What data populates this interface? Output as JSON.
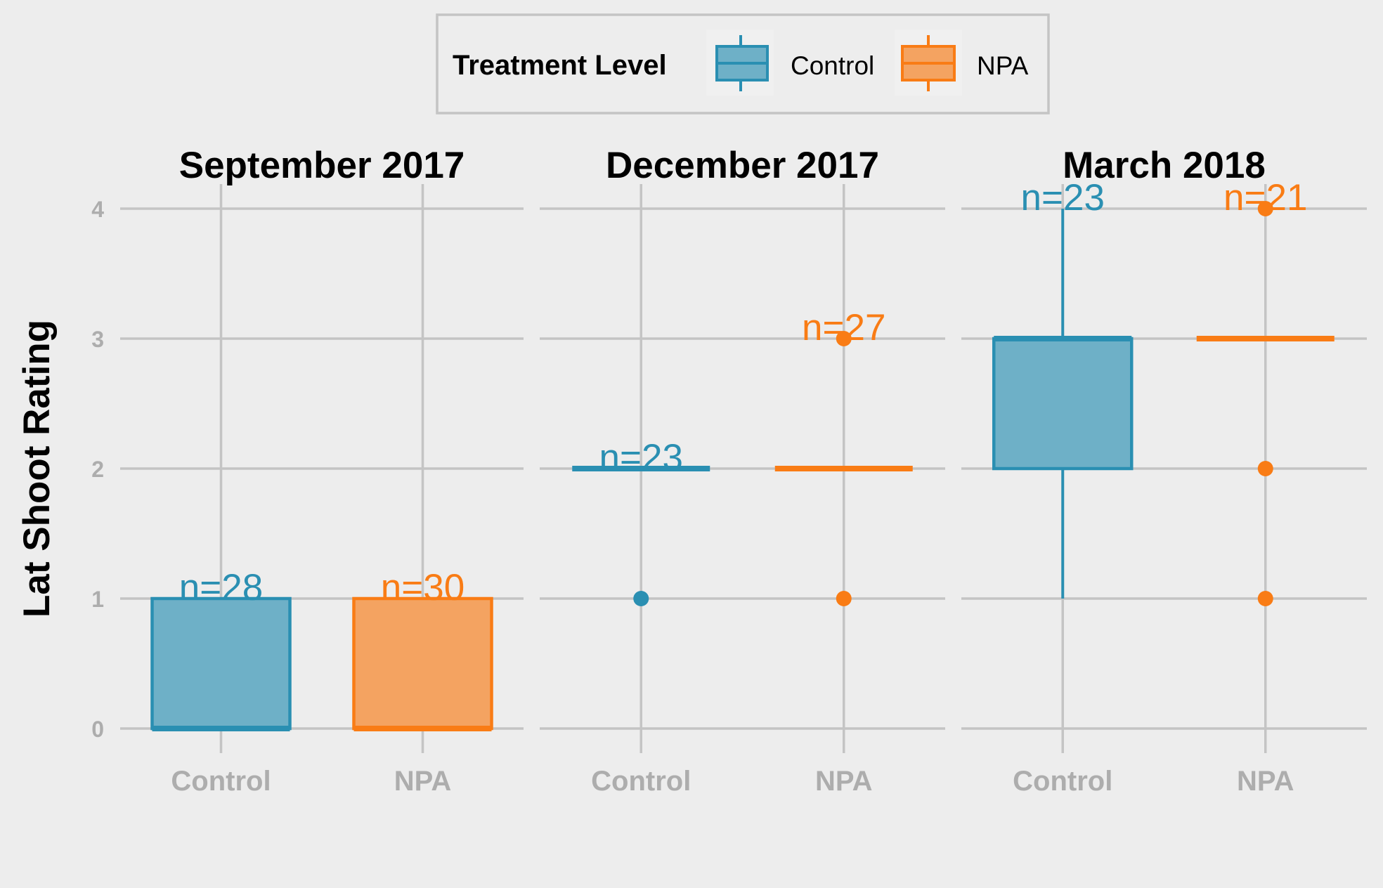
{
  "chart_data": {
    "type": "boxplot",
    "ylabel": "Lat Shoot Rating",
    "ylim": [
      0,
      4
    ],
    "y_ticks": [
      0,
      1,
      2,
      3,
      4
    ],
    "y_tick_labels": [
      "0",
      "1",
      "2",
      "3",
      "4"
    ],
    "categories": [
      "Control",
      "NPA"
    ],
    "grid": true,
    "legend": {
      "title": "Treatment Level",
      "position": "top",
      "entries": [
        {
          "label": "Control",
          "color": "#2A8FB2",
          "fill": "#6EB0C7"
        },
        {
          "label": "NPA",
          "color": "#F97C15",
          "fill": "#F4A361"
        }
      ]
    },
    "facets": [
      {
        "title": "September 2017",
        "groups": [
          {
            "category": "Control",
            "n_label": "n=28",
            "min": 0,
            "q1": 0,
            "median": 0,
            "q3": 1,
            "max": 1,
            "outliers": []
          },
          {
            "category": "NPA",
            "n_label": "n=30",
            "min": 0,
            "q1": 0,
            "median": 0,
            "q3": 1,
            "max": 1,
            "outliers": []
          }
        ]
      },
      {
        "title": "December 2017",
        "groups": [
          {
            "category": "Control",
            "n_label": "n=23",
            "min": 2,
            "q1": 2,
            "median": 2,
            "q3": 2,
            "max": 2,
            "outliers": [
              1
            ]
          },
          {
            "category": "NPA",
            "n_label": "n=27",
            "min": 2,
            "q1": 2,
            "median": 2,
            "q3": 2,
            "max": 2,
            "outliers": [
              1,
              3
            ]
          }
        ]
      },
      {
        "title": "March 2018",
        "groups": [
          {
            "category": "Control",
            "n_label": "n=23",
            "min": 1,
            "q1": 2,
            "median": 3,
            "q3": 3,
            "max": 4,
            "outliers": []
          },
          {
            "category": "NPA",
            "n_label": "n=21",
            "min": 3,
            "q1": 3,
            "median": 3,
            "q3": 3,
            "max": 3,
            "outliers": [
              1,
              2,
              4
            ]
          }
        ]
      }
    ]
  }
}
